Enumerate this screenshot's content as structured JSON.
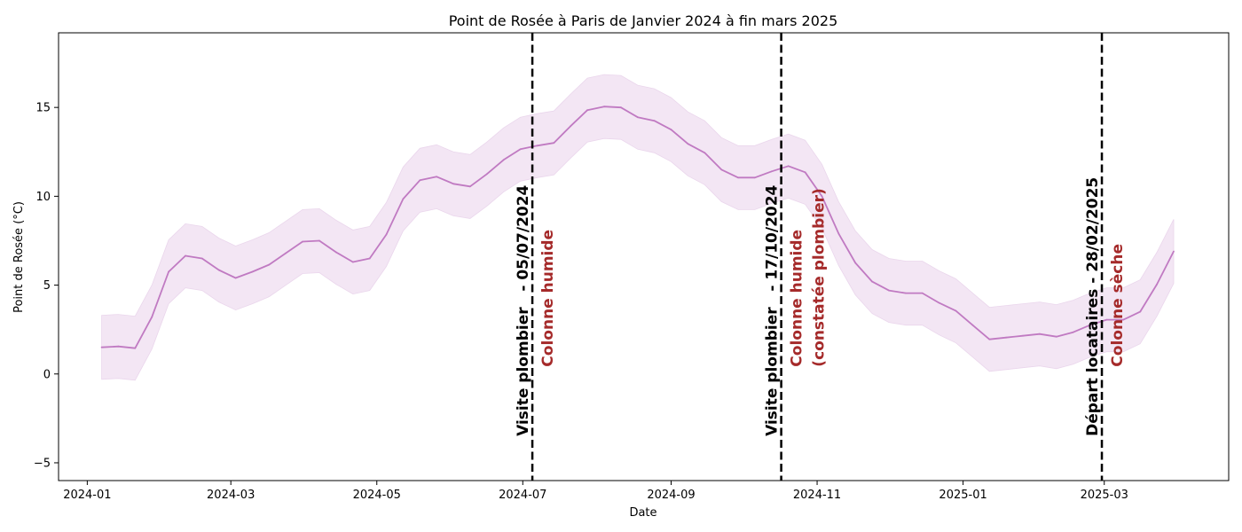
{
  "chart_data": {
    "type": "line",
    "title": "Point de Rosée à Paris de Janvier 2024 à fin mars 2025",
    "xlabel": "Date",
    "ylabel": "Point de Rosée (°C)",
    "xlim": [
      "2023-12-20",
      "2025-04-22"
    ],
    "ylim": [
      -6,
      19.2
    ],
    "y_ticks": [
      -5,
      0,
      5,
      10,
      15
    ],
    "y_tick_labels": [
      "−5",
      "0",
      "5",
      "10",
      "15"
    ],
    "x_ticks": [
      "2024-01-01",
      "2024-03-01",
      "2024-05-01",
      "2024-07-01",
      "2024-09-01",
      "2024-11-01",
      "2025-01-01",
      "2025-03-01"
    ],
    "x_tick_labels": [
      "2024-01",
      "2024-03",
      "2024-05",
      "2024-07",
      "2024-09",
      "2024-11",
      "2025-01",
      "2025-03"
    ],
    "grid": false,
    "colors": {
      "line": "#c07ac2",
      "band": "#f3e6f4",
      "band_edge": "#ead6ec",
      "event_line": "#000000",
      "annotation_red": "#a52a2a"
    },
    "series": [
      {
        "x": [
          "2024-01-07",
          "2024-01-14",
          "2024-01-21",
          "2024-01-28",
          "2024-02-04",
          "2024-02-11",
          "2024-02-18",
          "2024-02-25",
          "2024-03-03",
          "2024-03-10",
          "2024-03-17",
          "2024-03-24",
          "2024-03-31",
          "2024-04-07",
          "2024-04-14",
          "2024-04-21",
          "2024-04-28",
          "2024-05-05",
          "2024-05-12",
          "2024-05-19",
          "2024-05-26",
          "2024-06-02",
          "2024-06-09",
          "2024-06-16",
          "2024-06-23",
          "2024-06-30",
          "2024-07-07",
          "2024-07-14",
          "2024-07-21",
          "2024-07-28",
          "2024-08-04",
          "2024-08-11",
          "2024-08-18",
          "2024-08-25",
          "2024-09-01",
          "2024-09-08",
          "2024-09-15",
          "2024-09-22",
          "2024-09-29",
          "2024-10-06",
          "2024-10-13",
          "2024-10-20",
          "2024-10-27",
          "2024-11-03",
          "2024-11-10",
          "2024-11-17",
          "2024-11-24",
          "2024-12-01",
          "2024-12-08",
          "2024-12-15",
          "2024-12-22",
          "2024-12-29",
          "2025-01-05",
          "2025-01-12",
          "2025-01-19",
          "2025-01-26",
          "2025-02-02",
          "2025-02-09",
          "2025-02-16",
          "2025-02-23",
          "2025-03-02",
          "2025-03-09",
          "2025-03-16",
          "2025-03-23",
          "2025-03-30"
        ],
        "y": [
          1.5,
          1.55,
          1.45,
          3.2,
          5.75,
          6.65,
          6.5,
          5.85,
          5.4,
          5.75,
          6.15,
          6.8,
          7.45,
          7.5,
          6.85,
          6.3,
          6.5,
          7.85,
          9.85,
          10.9,
          11.1,
          10.7,
          10.55,
          11.25,
          12.05,
          12.65,
          12.85,
          13.0,
          13.95,
          14.85,
          15.05,
          15.0,
          14.45,
          14.25,
          13.75,
          12.95,
          12.45,
          11.5,
          11.05,
          11.05,
          11.4,
          11.7,
          11.35,
          10.0,
          7.9,
          6.25,
          5.2,
          4.7,
          4.55,
          4.55,
          4.0,
          3.55,
          2.75,
          1.95,
          2.05,
          2.15,
          2.25,
          2.1,
          2.35,
          2.75,
          3.05,
          3.05,
          3.5,
          5.05,
          6.9
        ],
        "y_lower": [
          -0.3,
          -0.25,
          -0.35,
          1.4,
          3.95,
          4.85,
          4.7,
          4.05,
          3.6,
          3.95,
          4.35,
          5.0,
          5.65,
          5.7,
          5.05,
          4.5,
          4.7,
          6.05,
          8.05,
          9.1,
          9.3,
          8.9,
          8.75,
          9.45,
          10.25,
          10.85,
          11.05,
          11.2,
          12.15,
          13.05,
          13.25,
          13.2,
          12.65,
          12.45,
          11.95,
          11.15,
          10.65,
          9.7,
          9.25,
          9.25,
          9.6,
          9.9,
          9.55,
          8.2,
          6.1,
          4.45,
          3.4,
          2.9,
          2.75,
          2.75,
          2.2,
          1.75,
          0.95,
          0.15,
          0.25,
          0.35,
          0.45,
          0.3,
          0.55,
          0.95,
          1.25,
          1.25,
          1.7,
          3.25,
          5.1
        ],
        "y_upper": [
          3.3,
          3.35,
          3.25,
          5.0,
          7.55,
          8.45,
          8.3,
          7.65,
          7.2,
          7.55,
          7.95,
          8.6,
          9.25,
          9.3,
          8.65,
          8.1,
          8.3,
          9.65,
          11.65,
          12.7,
          12.9,
          12.5,
          12.35,
          13.05,
          13.85,
          14.45,
          14.65,
          14.8,
          15.75,
          16.65,
          16.85,
          16.8,
          16.25,
          16.05,
          15.55,
          14.75,
          14.25,
          13.3,
          12.85,
          12.85,
          13.2,
          13.5,
          13.15,
          11.8,
          9.7,
          8.05,
          7.0,
          6.5,
          6.35,
          6.35,
          5.8,
          5.35,
          4.55,
          3.75,
          3.85,
          3.95,
          4.05,
          3.9,
          4.15,
          4.55,
          4.85,
          4.85,
          5.3,
          6.85,
          8.7
        ]
      }
    ],
    "events": [
      {
        "date": "2024-07-05",
        "label": "Visite plombier   - 05/07/2024",
        "note_lines": [
          "Colonne humide"
        ]
      },
      {
        "date": "2024-10-17",
        "label": "Visite plombier   - 17/10/2024",
        "note_lines": [
          "Colonne humide",
          "(constatée plombier)"
        ]
      },
      {
        "date": "2025-02-28",
        "label": "Départ locataires - 28/02/2025",
        "note_lines": [
          "Colonne sèche"
        ]
      }
    ]
  }
}
